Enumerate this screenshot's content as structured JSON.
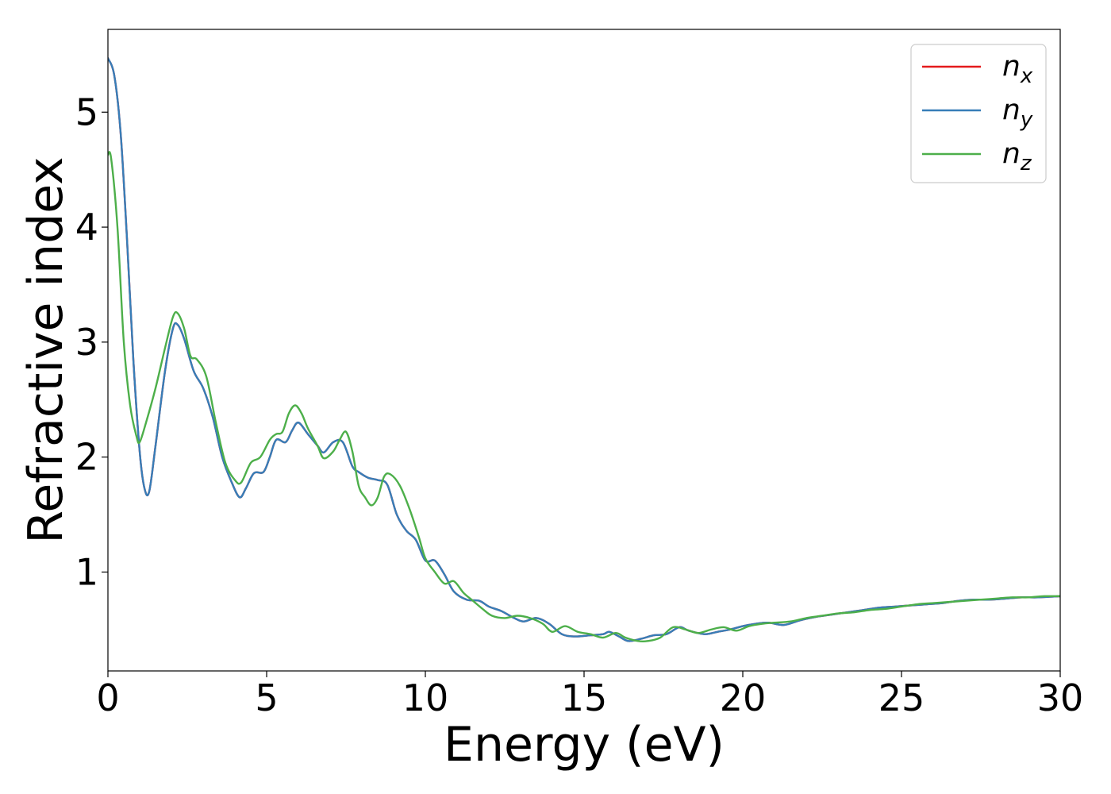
{
  "chart_data": {
    "type": "line",
    "title": "",
    "xlabel": "Energy (eV)",
    "ylabel": "Refractive index",
    "xlim": [
      0,
      30
    ],
    "ylim": [
      0.14,
      5.72
    ],
    "xticks": [
      0,
      5,
      10,
      15,
      20,
      25,
      30
    ],
    "yticks": [
      1,
      2,
      3,
      4,
      5
    ],
    "grid": false,
    "legend_position": "top-right",
    "series": [
      {
        "name": "n",
        "sub": "x",
        "color": "#e41a1c",
        "points": [
          [
            0,
            5.47
          ],
          [
            0.2,
            5.32
          ],
          [
            0.4,
            4.82
          ],
          [
            0.6,
            3.9
          ],
          [
            0.8,
            2.85
          ],
          [
            1.0,
            2.05
          ],
          [
            1.15,
            1.73
          ],
          [
            1.3,
            1.7
          ],
          [
            1.5,
            2.1
          ],
          [
            1.8,
            2.75
          ],
          [
            2.05,
            3.12
          ],
          [
            2.2,
            3.15
          ],
          [
            2.4,
            3.03
          ],
          [
            2.7,
            2.75
          ],
          [
            3.0,
            2.6
          ],
          [
            3.3,
            2.35
          ],
          [
            3.6,
            2.0
          ],
          [
            3.9,
            1.78
          ],
          [
            4.15,
            1.65
          ],
          [
            4.35,
            1.73
          ],
          [
            4.6,
            1.86
          ],
          [
            4.9,
            1.87
          ],
          [
            5.1,
            2.0
          ],
          [
            5.3,
            2.15
          ],
          [
            5.6,
            2.13
          ],
          [
            5.8,
            2.23
          ],
          [
            6.0,
            2.3
          ],
          [
            6.3,
            2.2
          ],
          [
            6.6,
            2.1
          ],
          [
            6.8,
            2.04
          ],
          [
            7.1,
            2.13
          ],
          [
            7.4,
            2.13
          ],
          [
            7.7,
            1.92
          ],
          [
            7.9,
            1.87
          ],
          [
            8.2,
            1.82
          ],
          [
            8.5,
            1.8
          ],
          [
            8.8,
            1.76
          ],
          [
            9.1,
            1.5
          ],
          [
            9.4,
            1.36
          ],
          [
            9.7,
            1.28
          ],
          [
            10.0,
            1.1
          ],
          [
            10.3,
            1.1
          ],
          [
            10.6,
            0.98
          ],
          [
            10.9,
            0.83
          ],
          [
            11.3,
            0.76
          ],
          [
            11.7,
            0.75
          ],
          [
            12.0,
            0.7
          ],
          [
            12.4,
            0.66
          ],
          [
            12.8,
            0.6
          ],
          [
            13.1,
            0.57
          ],
          [
            13.5,
            0.6
          ],
          [
            13.9,
            0.55
          ],
          [
            14.3,
            0.46
          ],
          [
            14.7,
            0.44
          ],
          [
            15.2,
            0.45
          ],
          [
            15.6,
            0.46
          ],
          [
            15.8,
            0.48
          ],
          [
            16.1,
            0.44
          ],
          [
            16.4,
            0.4
          ],
          [
            16.8,
            0.42
          ],
          [
            17.2,
            0.45
          ],
          [
            17.6,
            0.46
          ],
          [
            18.0,
            0.52
          ],
          [
            18.3,
            0.49
          ],
          [
            18.8,
            0.46
          ],
          [
            19.2,
            0.48
          ],
          [
            19.6,
            0.5
          ],
          [
            20.0,
            0.53
          ],
          [
            20.4,
            0.55
          ],
          [
            20.8,
            0.56
          ],
          [
            21.3,
            0.54
          ],
          [
            21.8,
            0.58
          ],
          [
            22.3,
            0.61
          ],
          [
            22.8,
            0.63
          ],
          [
            23.3,
            0.65
          ],
          [
            23.8,
            0.67
          ],
          [
            24.3,
            0.69
          ],
          [
            24.8,
            0.7
          ],
          [
            25.3,
            0.71
          ],
          [
            25.8,
            0.72
          ],
          [
            26.3,
            0.73
          ],
          [
            26.8,
            0.75
          ],
          [
            27.3,
            0.76
          ],
          [
            27.8,
            0.76
          ],
          [
            28.3,
            0.77
          ],
          [
            28.8,
            0.78
          ],
          [
            29.3,
            0.78
          ],
          [
            30.0,
            0.79
          ]
        ]
      },
      {
        "name": "n",
        "sub": "y",
        "color": "#377eb8",
        "points": [
          [
            0,
            5.47
          ],
          [
            0.2,
            5.32
          ],
          [
            0.4,
            4.82
          ],
          [
            0.6,
            3.9
          ],
          [
            0.8,
            2.85
          ],
          [
            1.0,
            2.05
          ],
          [
            1.15,
            1.73
          ],
          [
            1.3,
            1.7
          ],
          [
            1.5,
            2.1
          ],
          [
            1.8,
            2.75
          ],
          [
            2.05,
            3.12
          ],
          [
            2.2,
            3.15
          ],
          [
            2.4,
            3.03
          ],
          [
            2.7,
            2.75
          ],
          [
            3.0,
            2.6
          ],
          [
            3.3,
            2.35
          ],
          [
            3.6,
            2.0
          ],
          [
            3.9,
            1.78
          ],
          [
            4.15,
            1.65
          ],
          [
            4.35,
            1.73
          ],
          [
            4.6,
            1.86
          ],
          [
            4.9,
            1.87
          ],
          [
            5.1,
            2.0
          ],
          [
            5.3,
            2.15
          ],
          [
            5.6,
            2.13
          ],
          [
            5.8,
            2.23
          ],
          [
            6.0,
            2.3
          ],
          [
            6.3,
            2.2
          ],
          [
            6.6,
            2.1
          ],
          [
            6.8,
            2.04
          ],
          [
            7.1,
            2.13
          ],
          [
            7.4,
            2.13
          ],
          [
            7.7,
            1.92
          ],
          [
            7.9,
            1.87
          ],
          [
            8.2,
            1.82
          ],
          [
            8.5,
            1.8
          ],
          [
            8.8,
            1.76
          ],
          [
            9.1,
            1.5
          ],
          [
            9.4,
            1.36
          ],
          [
            9.7,
            1.28
          ],
          [
            10.0,
            1.1
          ],
          [
            10.3,
            1.1
          ],
          [
            10.6,
            0.98
          ],
          [
            10.9,
            0.83
          ],
          [
            11.3,
            0.76
          ],
          [
            11.7,
            0.75
          ],
          [
            12.0,
            0.7
          ],
          [
            12.4,
            0.66
          ],
          [
            12.8,
            0.6
          ],
          [
            13.1,
            0.57
          ],
          [
            13.5,
            0.6
          ],
          [
            13.9,
            0.55
          ],
          [
            14.3,
            0.46
          ],
          [
            14.7,
            0.44
          ],
          [
            15.2,
            0.45
          ],
          [
            15.6,
            0.46
          ],
          [
            15.8,
            0.48
          ],
          [
            16.1,
            0.44
          ],
          [
            16.4,
            0.4
          ],
          [
            16.8,
            0.42
          ],
          [
            17.2,
            0.45
          ],
          [
            17.6,
            0.46
          ],
          [
            18.0,
            0.52
          ],
          [
            18.3,
            0.49
          ],
          [
            18.8,
            0.46
          ],
          [
            19.2,
            0.48
          ],
          [
            19.6,
            0.5
          ],
          [
            20.0,
            0.53
          ],
          [
            20.4,
            0.55
          ],
          [
            20.8,
            0.56
          ],
          [
            21.3,
            0.54
          ],
          [
            21.8,
            0.58
          ],
          [
            22.3,
            0.61
          ],
          [
            22.8,
            0.63
          ],
          [
            23.3,
            0.65
          ],
          [
            23.8,
            0.67
          ],
          [
            24.3,
            0.69
          ],
          [
            24.8,
            0.7
          ],
          [
            25.3,
            0.71
          ],
          [
            25.8,
            0.72
          ],
          [
            26.3,
            0.73
          ],
          [
            26.8,
            0.75
          ],
          [
            27.3,
            0.76
          ],
          [
            27.8,
            0.76
          ],
          [
            28.3,
            0.77
          ],
          [
            28.8,
            0.78
          ],
          [
            29.3,
            0.78
          ],
          [
            30.0,
            0.79
          ]
        ]
      },
      {
        "name": "n",
        "sub": "z",
        "color": "#4daf4a",
        "points": [
          [
            0,
            4.63
          ],
          [
            0.1,
            4.6
          ],
          [
            0.3,
            4.0
          ],
          [
            0.5,
            3.0
          ],
          [
            0.7,
            2.45
          ],
          [
            0.9,
            2.18
          ],
          [
            1.0,
            2.13
          ],
          [
            1.2,
            2.3
          ],
          [
            1.5,
            2.6
          ],
          [
            1.8,
            2.95
          ],
          [
            2.05,
            3.22
          ],
          [
            2.2,
            3.25
          ],
          [
            2.4,
            3.12
          ],
          [
            2.6,
            2.88
          ],
          [
            2.8,
            2.85
          ],
          [
            3.1,
            2.7
          ],
          [
            3.4,
            2.3
          ],
          [
            3.7,
            1.95
          ],
          [
            4.0,
            1.8
          ],
          [
            4.2,
            1.78
          ],
          [
            4.5,
            1.95
          ],
          [
            4.8,
            2.0
          ],
          [
            5.1,
            2.15
          ],
          [
            5.3,
            2.2
          ],
          [
            5.5,
            2.22
          ],
          [
            5.7,
            2.38
          ],
          [
            5.9,
            2.45
          ],
          [
            6.1,
            2.38
          ],
          [
            6.3,
            2.25
          ],
          [
            6.6,
            2.1
          ],
          [
            6.8,
            1.99
          ],
          [
            7.1,
            2.05
          ],
          [
            7.3,
            2.15
          ],
          [
            7.5,
            2.22
          ],
          [
            7.7,
            2.05
          ],
          [
            7.9,
            1.75
          ],
          [
            8.1,
            1.65
          ],
          [
            8.3,
            1.58
          ],
          [
            8.5,
            1.65
          ],
          [
            8.7,
            1.83
          ],
          [
            8.9,
            1.85
          ],
          [
            9.2,
            1.75
          ],
          [
            9.5,
            1.55
          ],
          [
            9.8,
            1.3
          ],
          [
            10.0,
            1.12
          ],
          [
            10.3,
            1.0
          ],
          [
            10.6,
            0.9
          ],
          [
            10.9,
            0.92
          ],
          [
            11.2,
            0.82
          ],
          [
            11.5,
            0.75
          ],
          [
            11.8,
            0.68
          ],
          [
            12.1,
            0.62
          ],
          [
            12.5,
            0.6
          ],
          [
            12.9,
            0.62
          ],
          [
            13.3,
            0.6
          ],
          [
            13.7,
            0.55
          ],
          [
            14.0,
            0.48
          ],
          [
            14.4,
            0.53
          ],
          [
            14.8,
            0.48
          ],
          [
            15.2,
            0.46
          ],
          [
            15.6,
            0.43
          ],
          [
            16.0,
            0.47
          ],
          [
            16.3,
            0.43
          ],
          [
            16.7,
            0.4
          ],
          [
            17.0,
            0.4
          ],
          [
            17.4,
            0.43
          ],
          [
            17.8,
            0.52
          ],
          [
            18.2,
            0.5
          ],
          [
            18.6,
            0.47
          ],
          [
            19.0,
            0.5
          ],
          [
            19.4,
            0.52
          ],
          [
            19.8,
            0.49
          ],
          [
            20.2,
            0.53
          ],
          [
            20.6,
            0.55
          ],
          [
            21.0,
            0.56
          ],
          [
            21.5,
            0.57
          ],
          [
            22.0,
            0.6
          ],
          [
            22.5,
            0.62
          ],
          [
            23.0,
            0.64
          ],
          [
            23.5,
            0.65
          ],
          [
            24.0,
            0.67
          ],
          [
            24.5,
            0.68
          ],
          [
            25.0,
            0.7
          ],
          [
            25.5,
            0.72
          ],
          [
            26.0,
            0.73
          ],
          [
            26.5,
            0.74
          ],
          [
            27.0,
            0.75
          ],
          [
            27.5,
            0.76
          ],
          [
            28.0,
            0.77
          ],
          [
            28.5,
            0.78
          ],
          [
            29.0,
            0.78
          ],
          [
            29.5,
            0.79
          ],
          [
            30.0,
            0.79
          ]
        ]
      }
    ]
  }
}
